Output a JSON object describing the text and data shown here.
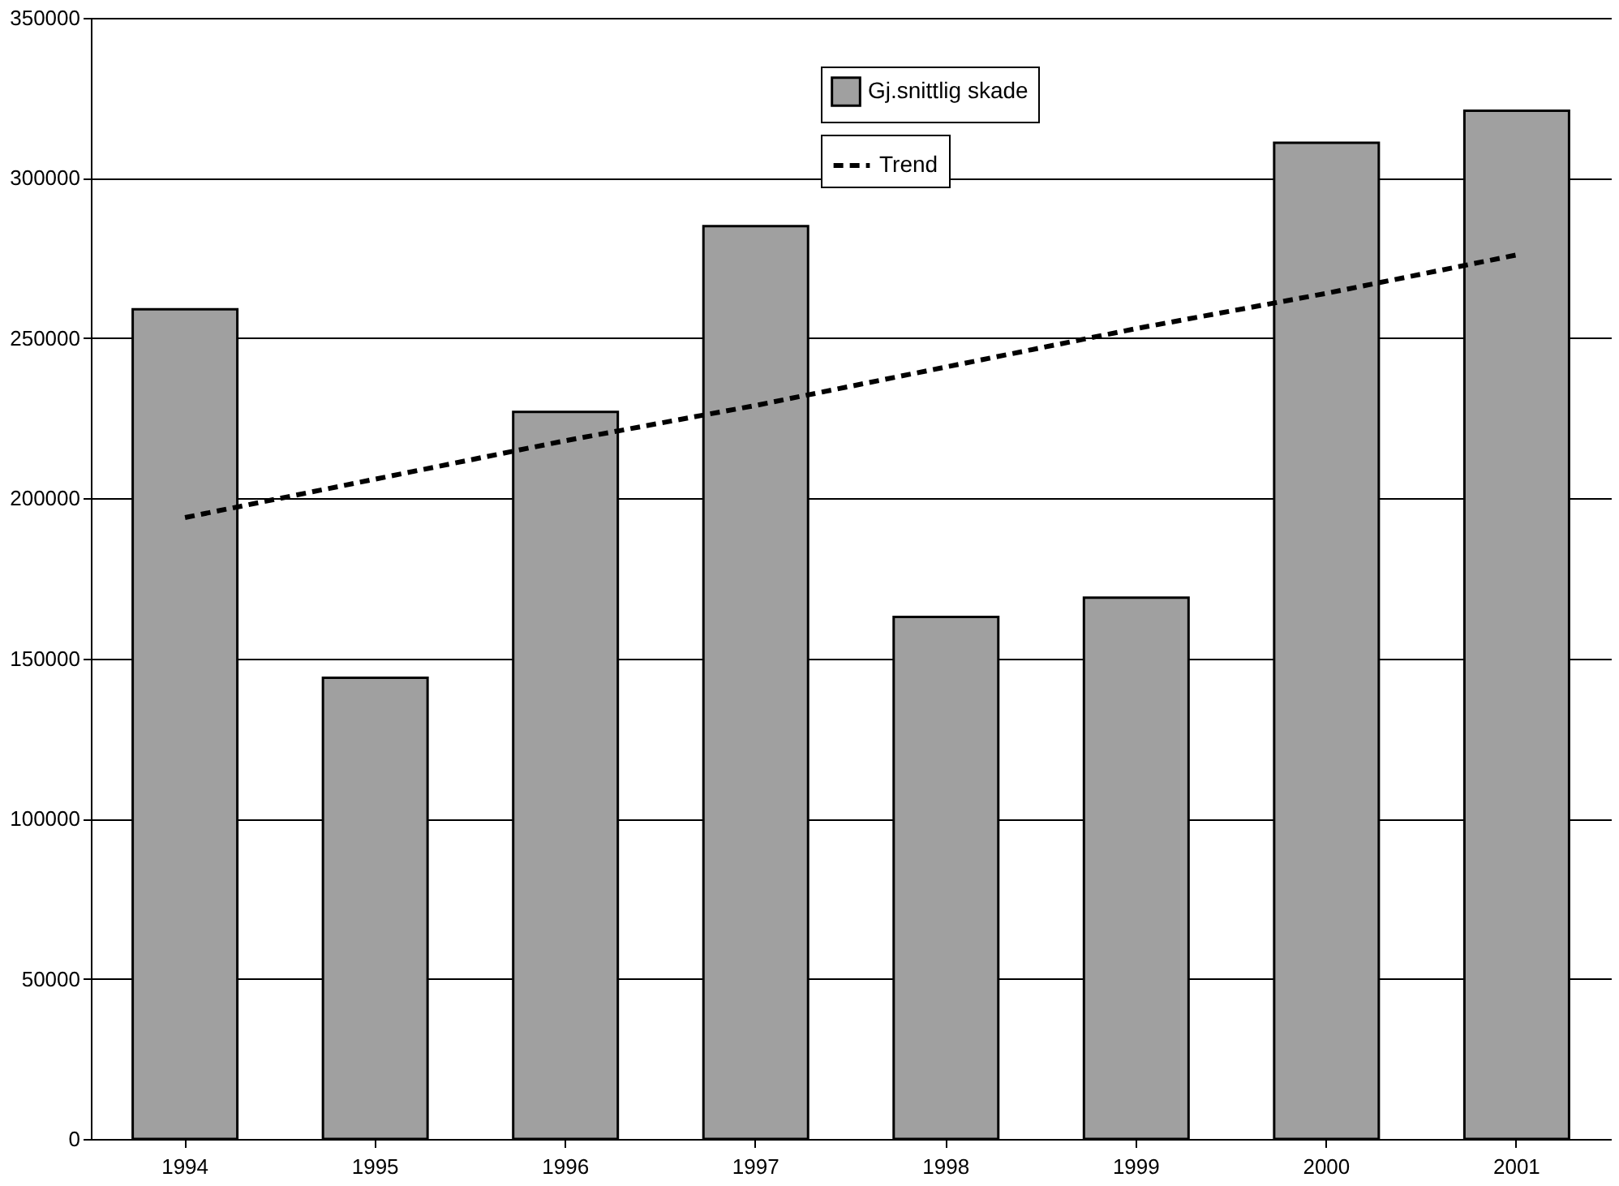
{
  "chart_data": {
    "type": "bar",
    "categories": [
      "1994",
      "1995",
      "1996",
      "1997",
      "1998",
      "1999",
      "2000",
      "2001"
    ],
    "series": [
      {
        "name": "Gj.snittlig skade",
        "color": "#a0a0a0",
        "values": [
          259000,
          144000,
          227000,
          285000,
          163000,
          169000,
          311000,
          321000
        ]
      },
      {
        "name": "Trend",
        "type": "line",
        "color": "#000000",
        "line_style": "dashed",
        "values": [
          194000,
          206000,
          218000,
          229000,
          241000,
          253000,
          264000,
          276000
        ]
      }
    ],
    "ylim": [
      0,
      350000
    ],
    "yticks": [
      0,
      50000,
      100000,
      150000,
      200000,
      250000,
      300000,
      350000
    ],
    "grid": "y",
    "legend": "top right"
  }
}
